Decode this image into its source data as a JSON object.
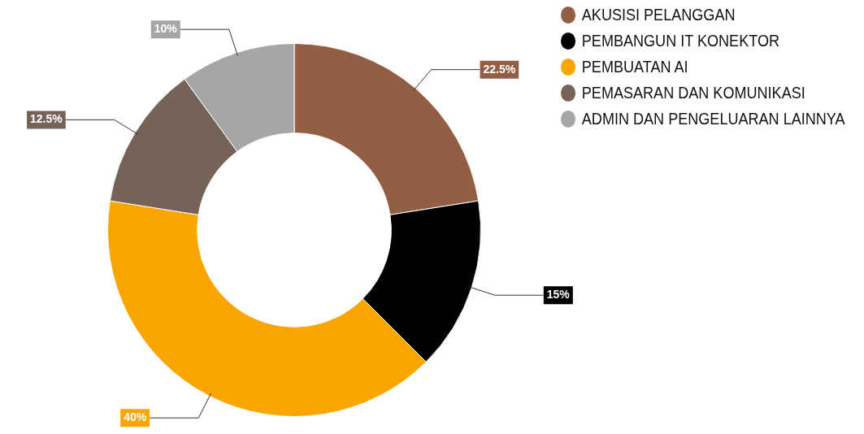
{
  "chart_data": {
    "type": "donut",
    "categories": [
      "AKUSISI PELANGGAN",
      "PEMBANGUN IT KONEKTOR",
      "PEMBUATAN AI",
      "PEMASARAN DAN KOMUNIKASI",
      "ADMIN DAN PENGELUARAN LAINNYA"
    ],
    "values": [
      22.5,
      15,
      40,
      12.5,
      10
    ],
    "colors": [
      "#925f45",
      "#000000",
      "#fba500",
      "#756357",
      "#a6a6a6"
    ],
    "value_labels": [
      "22.5%",
      "15%",
      "40%",
      "12.5%",
      "10%"
    ],
    "legend": "top right"
  }
}
